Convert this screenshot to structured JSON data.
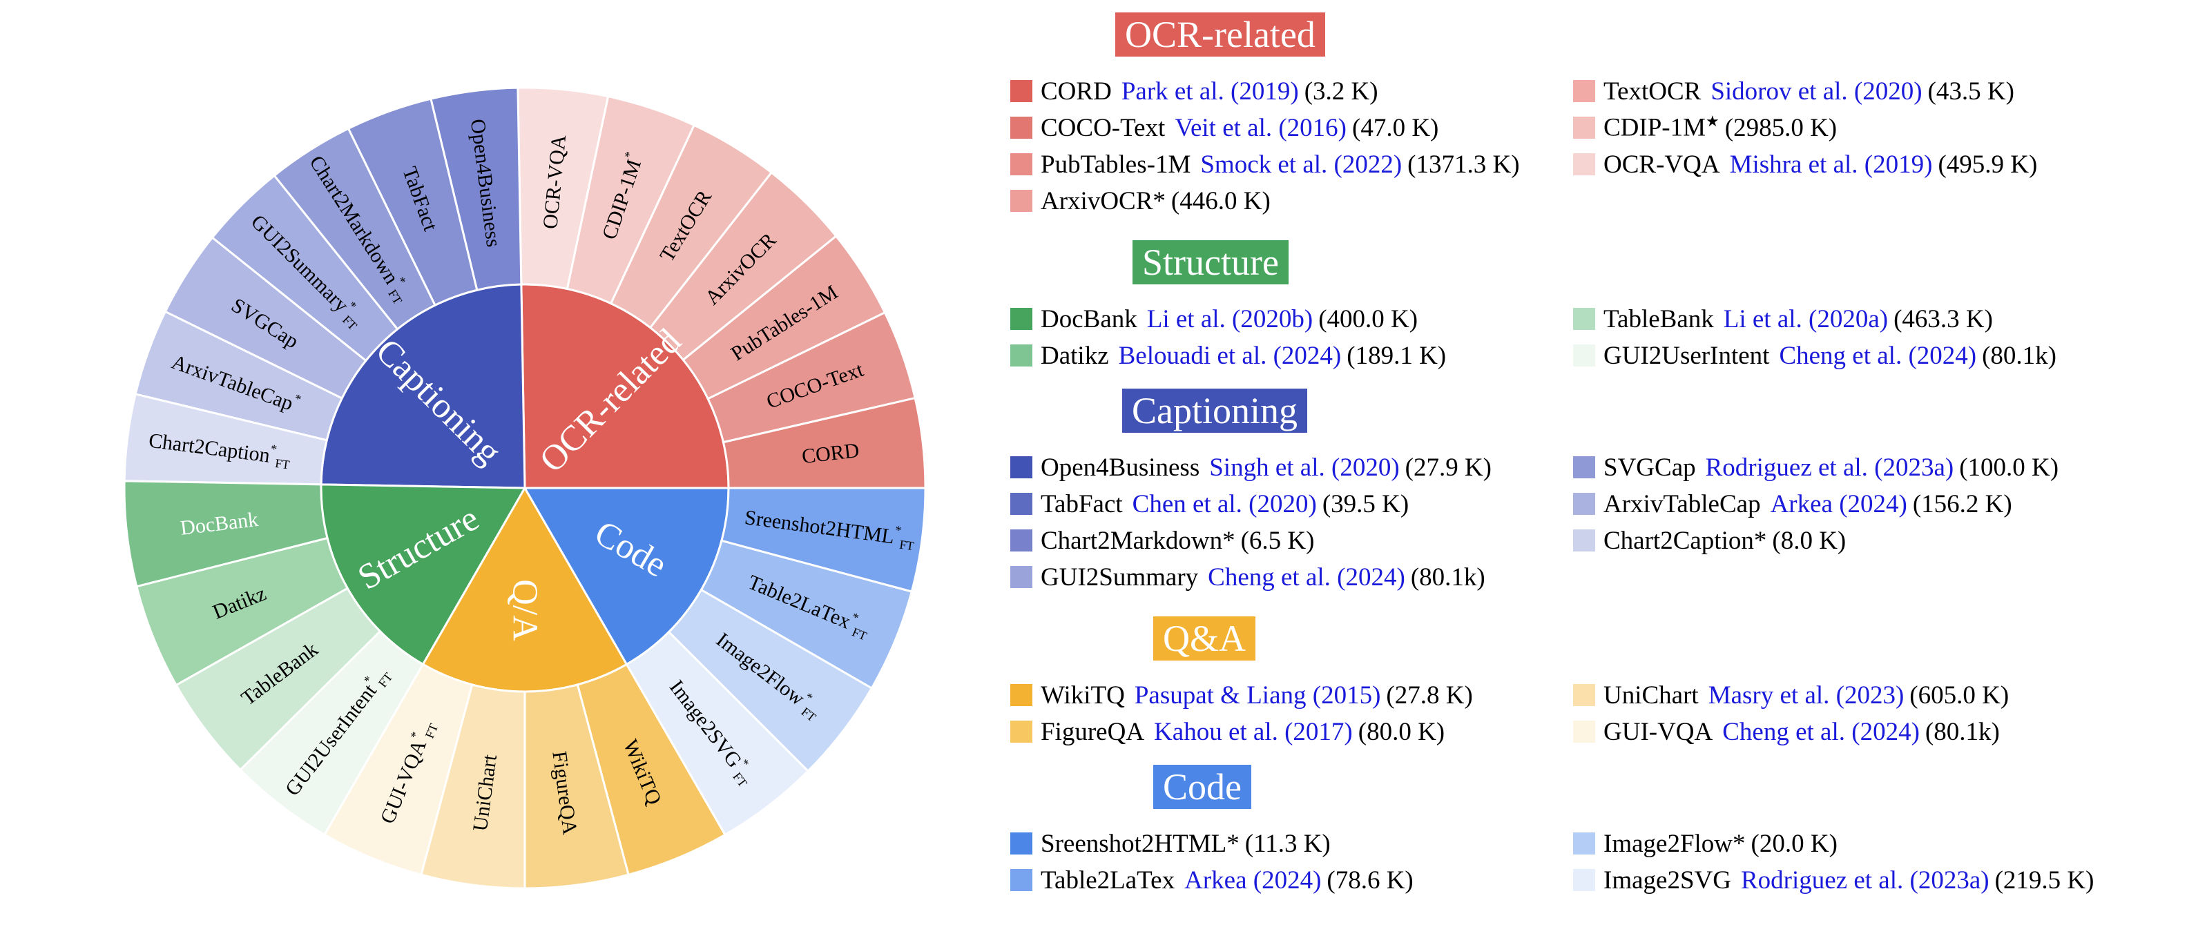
{
  "chart_data": {
    "type": "sunburst",
    "categories": [
      {
        "name": "OCR-related",
        "color": "#dd5f57",
        "segments": [
          {
            "label": "CORD",
            "sup": "",
            "sub": "",
            "color": "#e3847c"
          },
          {
            "label": "COCO-Text",
            "sup": "",
            "sub": "",
            "color": "#e79590"
          },
          {
            "label": "PubTables-1M",
            "sup": "",
            "sub": "",
            "color": "#eba6a2"
          },
          {
            "label": "ArxivOCR",
            "sup": "",
            "sub": "",
            "color": "#efb5b1"
          },
          {
            "label": "TextOCR",
            "sup": "",
            "sub": "",
            "color": "#f1bdb9"
          },
          {
            "label": "CDIP-1M",
            "sup": "*",
            "sub": "",
            "color": "#f4cbc8"
          },
          {
            "label": "OCR-VQA",
            "sup": "",
            "sub": "",
            "color": "#f9dede"
          }
        ]
      },
      {
        "name": "Captioning",
        "color": "#4153b4",
        "segments": [
          {
            "label": "Open4Business",
            "sup": "",
            "sub": "",
            "color": "#7a86cf"
          },
          {
            "label": "TabFact",
            "sup": "",
            "sub": "",
            "color": "#8591d3"
          },
          {
            "label": "Chart2Markdown",
            "sup": "*",
            "sub": "FT",
            "color": "#939ed8"
          },
          {
            "label": "GUI2Summary",
            "sup": "*",
            "sub": "FT",
            "color": "#a5aee0"
          },
          {
            "label": "SVGCap",
            "sup": "",
            "sub": "",
            "color": "#b1b8e4"
          },
          {
            "label": "ArxivTableCap",
            "sup": "*",
            "sub": "",
            "color": "#c2c8ea"
          },
          {
            "label": "Chart2Caption",
            "sup": "*",
            "sub": "FT",
            "color": "#dadef3"
          }
        ]
      },
      {
        "name": "Structure",
        "color": "#46a45d",
        "segments": [
          {
            "label": "DocBank",
            "sup": "",
            "sub": "",
            "color": "#79c08b"
          },
          {
            "label": "Datikz",
            "sup": "",
            "sub": "",
            "color": "#a1d5ab"
          },
          {
            "label": "TableBank",
            "sup": "",
            "sub": "",
            "color": "#cde8d3"
          },
          {
            "label": "GUI2UserIntent",
            "sup": "*",
            "sub": "FT",
            "color": "#eef7f0"
          }
        ]
      },
      {
        "name": "Q/A",
        "color": "#f4b233",
        "segments": [
          {
            "label": "WikiTQ",
            "sup": "",
            "sub": "",
            "color": "#f6c665"
          },
          {
            "label": "FigureQA",
            "sup": "",
            "sub": "",
            "color": "#f8d48b"
          },
          {
            "label": "UniChart",
            "sup": "",
            "sub": "",
            "color": "#fbe4b8"
          },
          {
            "label": "GUI-VQA",
            "sup": "*",
            "sub": "FT",
            "color": "#fdf4e2"
          }
        ]
      },
      {
        "name": "Code",
        "color": "#4c87e8",
        "segments": [
          {
            "label": "Sreenshot2HTML",
            "sup": "*",
            "sub": "FT",
            "color": "#78a3ee"
          },
          {
            "label": "Table2LaTex",
            "sup": "*",
            "sub": "FT",
            "color": "#9ebdf3"
          },
          {
            "label": "Image2Flow",
            "sup": "*",
            "sub": "FT",
            "color": "#c5d8f8"
          },
          {
            "label": "Image2SVG",
            "sup": "*",
            "sub": "FT",
            "color": "#e6eefc"
          }
        ]
      }
    ]
  },
  "legend": {
    "groups": [
      {
        "title": "OCR-related",
        "color": "#dd5f57",
        "entries": [
          {
            "color": "#dd5f57",
            "name": "CORD",
            "star": "",
            "cite": "Park et al. (2019)",
            "count": "(3.2 K)"
          },
          {
            "color": "#f1aaa6",
            "name": "TextOCR",
            "star": "",
            "cite": "Sidorov et al. (2020)",
            "count": "(43.5 K)"
          },
          {
            "color": "#e27670",
            "name": "COCO-Text",
            "star": "",
            "cite": "Veit et al. (2016)",
            "count": "(47.0 K)"
          },
          {
            "color": "#f3c0bc",
            "name": "CDIP-1M",
            "star": "★",
            "cite": "",
            "count": "(2985.0 K)"
          },
          {
            "color": "#e98c87",
            "name": "PubTables-1M",
            "star": "",
            "cite": "Smock et al. (2022)",
            "count": "(1371.3 K)"
          },
          {
            "color": "#f6d4d1",
            "name": "OCR-VQA",
            "star": "",
            "cite": "Mishra et al. (2019)",
            "count": "(495.9 K)"
          },
          {
            "color": "#ed9e99",
            "name": "ArxivOCR*",
            "star": "",
            "cite": "",
            "count": "(446.0 K)"
          }
        ]
      },
      {
        "title": "Structure",
        "color": "#46a45d",
        "entries": [
          {
            "color": "#46a45d",
            "name": "DocBank",
            "star": "",
            "cite": "Li et al. (2020b)",
            "count": "(400.0 K)"
          },
          {
            "color": "#b4dec0",
            "name": "TableBank",
            "star": "",
            "cite": "Li et al. (2020a)",
            "count": "(463.3 K)"
          },
          {
            "color": "#7fc493",
            "name": "Datikz",
            "star": "",
            "cite": "Belouadi et al. (2024)",
            "count": "(189.1 K)"
          },
          {
            "color": "#eef7f0",
            "name": "GUI2UserIntent",
            "star": "",
            "cite": "Cheng et al. (2024)",
            "count": "(80.1k)"
          }
        ]
      },
      {
        "title": "Captioning",
        "color": "#4153b4",
        "entries": [
          {
            "color": "#4153b4",
            "name": "Open4Business",
            "star": "",
            "cite": "Singh et al. (2020)",
            "count": "(27.9 K)"
          },
          {
            "color": "#8f99d6",
            "name": "SVGCap",
            "star": "",
            "cite": "Rodriguez et al. (2023a)",
            "count": "(100.0 K)"
          },
          {
            "color": "#5d6cc1",
            "name": "TabFact",
            "star": "",
            "cite": "Chen et al. (2020)",
            "count": "(39.5 K)"
          },
          {
            "color": "#aab2df",
            "name": "ArxivTableCap",
            "star": "",
            "cite": "Arkea (2024)",
            "count": "(156.2 K)"
          },
          {
            "color": "#7781cc",
            "name": "Chart2Markdown*",
            "star": "",
            "cite": "",
            "count": "(6.5 K)"
          },
          {
            "color": "#ccd1ec",
            "name": "Chart2Caption*",
            "star": "",
            "cite": "",
            "count": "(8.0 K)"
          },
          {
            "color": "#9ba4da",
            "name": "GUI2Summary",
            "star": "",
            "cite": "Cheng et al. (2024)",
            "count": "(80.1k)"
          }
        ]
      },
      {
        "title": "Q&A",
        "color": "#f4b233",
        "entries": [
          {
            "color": "#f4b233",
            "name": "WikiTQ",
            "star": "",
            "cite": "Pasupat & Liang (2015)",
            "count": "(27.8 K)"
          },
          {
            "color": "#fbe0ac",
            "name": "UniChart",
            "star": "",
            "cite": "Masry et al. (2023)",
            "count": "(605.0 K)"
          },
          {
            "color": "#f7c862",
            "name": "FigureQA",
            "star": "",
            "cite": "Kahou et al. (2017)",
            "count": "(80.0 K)"
          },
          {
            "color": "#fdf4e2",
            "name": "GUI-VQA",
            "star": "",
            "cite": "Cheng et al. (2024)",
            "count": "(80.1k)"
          }
        ]
      },
      {
        "title": "Code",
        "color": "#4c87e8",
        "entries": [
          {
            "color": "#4c87e8",
            "name": "Sreenshot2HTML*",
            "star": "",
            "cite": "",
            "count": "(11.3 K)"
          },
          {
            "color": "#b4cdf6",
            "name": "Image2Flow*",
            "star": "",
            "cite": "",
            "count": "(20.0 K)"
          },
          {
            "color": "#78a3ee",
            "name": "Table2LaTex",
            "star": "",
            "cite": "Arkea (2024)",
            "count": "(78.6 K)"
          },
          {
            "color": "#e6eefc",
            "name": "Image2SVG",
            "star": "",
            "cite": "Rodriguez et al. (2023a)",
            "count": "(219.5 K)"
          }
        ]
      }
    ]
  }
}
